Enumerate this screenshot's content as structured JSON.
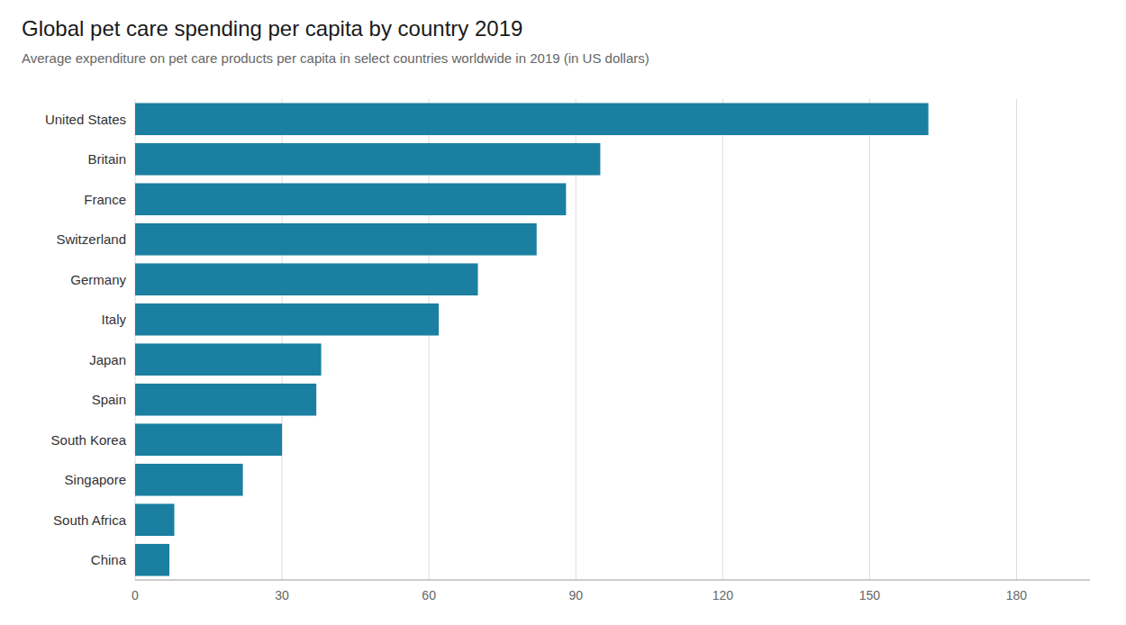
{
  "chart_data": {
    "type": "bar",
    "orientation": "horizontal",
    "title": "Global pet care spending per capita by country 2019",
    "subtitle": "Average expenditure on pet care products per capita in select countries worldwide in 2019 (in US dollars)",
    "categories": [
      "United States",
      "Britain",
      "France",
      "Switzerland",
      "Germany",
      "Italy",
      "Japan",
      "Spain",
      "South Korea",
      "Singapore",
      "South Africa",
      "China"
    ],
    "values": [
      162,
      95,
      88,
      82,
      70,
      62,
      38,
      37,
      30,
      22,
      8,
      7
    ],
    "color": "#1a7fa0",
    "xlim": [
      0,
      195
    ],
    "xticks": [
      0,
      30,
      60,
      90,
      120,
      150,
      180
    ],
    "grid": true
  }
}
